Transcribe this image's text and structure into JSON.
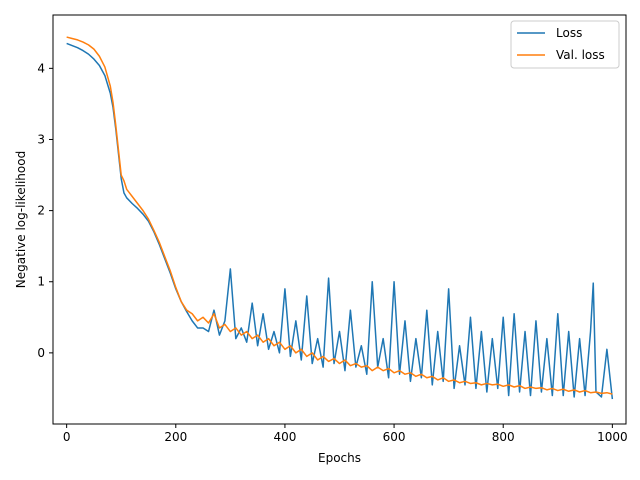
{
  "chart_data": {
    "type": "line",
    "xlabel": "Epochs",
    "ylabel": "Negative log-likelihood",
    "xlim": [
      -25,
      1025
    ],
    "ylim": [
      -1.0,
      4.75
    ],
    "xticks": [
      0,
      200,
      400,
      600,
      800,
      1000
    ],
    "yticks": [
      0,
      1,
      2,
      3,
      4
    ],
    "grid": false,
    "legend_position": "top-right",
    "series": [
      {
        "name": "Loss",
        "color": "#1f77b4",
        "x": [
          0,
          10,
          20,
          30,
          40,
          50,
          60,
          70,
          80,
          85,
          90,
          95,
          100,
          105,
          110,
          120,
          130,
          140,
          150,
          160,
          170,
          180,
          190,
          200,
          210,
          220,
          230,
          240,
          250,
          260,
          270,
          280,
          290,
          300,
          310,
          320,
          330,
          340,
          350,
          360,
          370,
          380,
          390,
          400,
          410,
          420,
          430,
          440,
          450,
          460,
          470,
          480,
          490,
          500,
          510,
          520,
          530,
          540,
          550,
          560,
          570,
          580,
          590,
          600,
          610,
          620,
          630,
          640,
          650,
          660,
          670,
          680,
          690,
          700,
          710,
          720,
          730,
          740,
          750,
          760,
          770,
          780,
          790,
          800,
          810,
          820,
          830,
          840,
          850,
          860,
          870,
          880,
          890,
          900,
          910,
          920,
          930,
          940,
          950,
          960,
          965,
          970,
          980,
          990,
          1000
        ],
        "y": [
          4.35,
          4.32,
          4.29,
          4.25,
          4.2,
          4.13,
          4.04,
          3.9,
          3.65,
          3.45,
          3.15,
          2.8,
          2.45,
          2.25,
          2.18,
          2.1,
          2.03,
          1.95,
          1.85,
          1.7,
          1.52,
          1.32,
          1.12,
          0.9,
          0.72,
          0.58,
          0.45,
          0.35,
          0.35,
          0.3,
          0.6,
          0.25,
          0.45,
          1.18,
          0.2,
          0.35,
          0.15,
          0.7,
          0.1,
          0.55,
          0.05,
          0.3,
          0.0,
          0.9,
          -0.05,
          0.45,
          -0.1,
          0.8,
          -0.15,
          0.2,
          -0.2,
          1.05,
          -0.15,
          0.3,
          -0.25,
          0.6,
          -0.2,
          0.1,
          -0.3,
          1.0,
          -0.2,
          0.2,
          -0.35,
          1.0,
          -0.3,
          0.45,
          -0.4,
          0.2,
          -0.35,
          0.6,
          -0.45,
          0.3,
          -0.4,
          0.9,
          -0.5,
          0.1,
          -0.45,
          0.5,
          -0.5,
          0.3,
          -0.55,
          0.2,
          -0.5,
          0.5,
          -0.6,
          0.55,
          -0.55,
          0.3,
          -0.6,
          0.45,
          -0.55,
          0.2,
          -0.6,
          0.55,
          -0.6,
          0.3,
          -0.62,
          0.2,
          -0.6,
          0.3,
          0.98,
          -0.55,
          -0.62,
          0.05,
          -0.65
        ]
      },
      {
        "name": "Val. loss",
        "color": "#ff7f0e",
        "x": [
          0,
          10,
          20,
          30,
          40,
          50,
          60,
          70,
          80,
          85,
          90,
          95,
          100,
          105,
          110,
          120,
          130,
          140,
          150,
          160,
          170,
          180,
          190,
          200,
          210,
          220,
          230,
          240,
          250,
          260,
          270,
          280,
          290,
          300,
          310,
          320,
          330,
          340,
          350,
          360,
          370,
          380,
          390,
          400,
          410,
          420,
          430,
          440,
          450,
          460,
          470,
          480,
          490,
          500,
          510,
          520,
          530,
          540,
          550,
          560,
          570,
          580,
          590,
          600,
          610,
          620,
          630,
          640,
          650,
          660,
          670,
          680,
          690,
          700,
          710,
          720,
          730,
          740,
          750,
          760,
          770,
          780,
          790,
          800,
          810,
          820,
          830,
          840,
          850,
          860,
          870,
          880,
          890,
          900,
          910,
          920,
          930,
          940,
          950,
          960,
          970,
          980,
          990,
          1000
        ],
        "y": [
          4.44,
          4.42,
          4.4,
          4.37,
          4.33,
          4.27,
          4.17,
          4.02,
          3.75,
          3.52,
          3.2,
          2.85,
          2.5,
          2.42,
          2.3,
          2.2,
          2.1,
          2.0,
          1.88,
          1.72,
          1.55,
          1.35,
          1.15,
          0.92,
          0.72,
          0.6,
          0.55,
          0.45,
          0.5,
          0.42,
          0.55,
          0.35,
          0.4,
          0.3,
          0.35,
          0.25,
          0.3,
          0.2,
          0.25,
          0.15,
          0.2,
          0.1,
          0.15,
          0.05,
          0.1,
          0.0,
          0.05,
          -0.05,
          0.0,
          -0.1,
          -0.05,
          -0.12,
          -0.08,
          -0.15,
          -0.1,
          -0.18,
          -0.15,
          -0.2,
          -0.18,
          -0.25,
          -0.2,
          -0.25,
          -0.22,
          -0.28,
          -0.25,
          -0.3,
          -0.28,
          -0.33,
          -0.3,
          -0.35,
          -0.33,
          -0.38,
          -0.35,
          -0.4,
          -0.38,
          -0.42,
          -0.4,
          -0.43,
          -0.42,
          -0.45,
          -0.43,
          -0.45,
          -0.44,
          -0.47,
          -0.45,
          -0.48,
          -0.46,
          -0.5,
          -0.48,
          -0.5,
          -0.49,
          -0.52,
          -0.5,
          -0.53,
          -0.51,
          -0.54,
          -0.52,
          -0.55,
          -0.53,
          -0.56,
          -0.55,
          -0.57,
          -0.56,
          -0.58
        ]
      }
    ]
  }
}
